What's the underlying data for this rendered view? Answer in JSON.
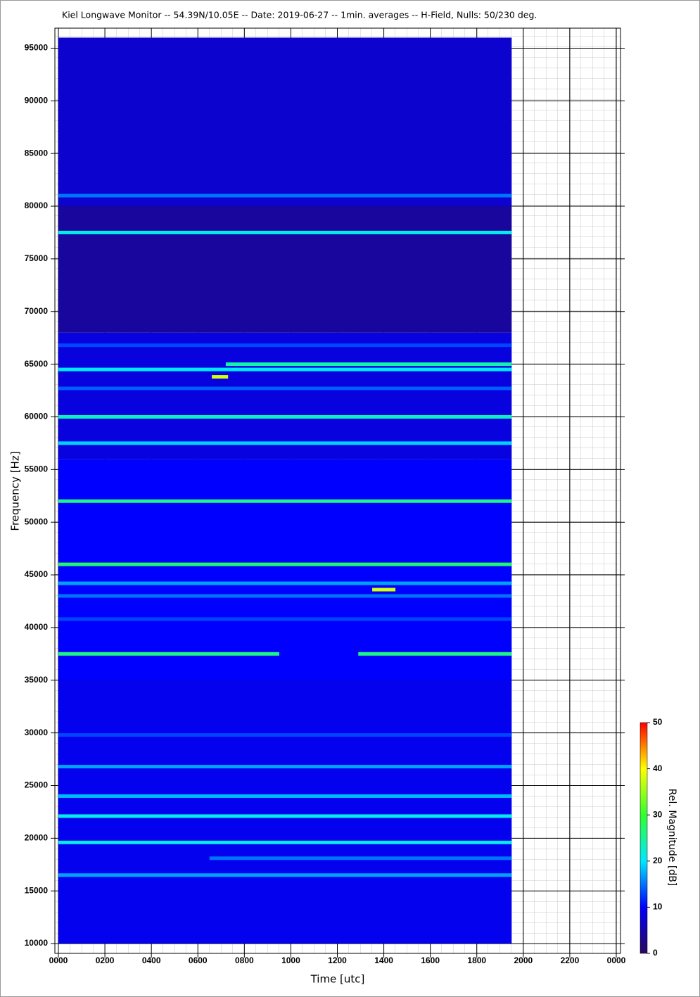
{
  "chart_data": {
    "type": "spectrogram",
    "title": "Kiel Longwave Monitor -- 54.39N/10.05E -- Date: 2019-06-27 -- 1min. averages -- H-Field, Nulls: 50/230 deg.",
    "xlabel": "Time [utc]",
    "ylabel": "Frequency [Hz]",
    "xlim": [
      0,
      24
    ],
    "ylim": [
      9070,
      96900
    ],
    "xticks": [
      {
        "value": 0,
        "label": "0000"
      },
      {
        "value": 2,
        "label": "0200"
      },
      {
        "value": 4,
        "label": "0400"
      },
      {
        "value": 6,
        "label": "0600"
      },
      {
        "value": 8,
        "label": "0800"
      },
      {
        "value": 10,
        "label": "1000"
      },
      {
        "value": 12,
        "label": "1200"
      },
      {
        "value": 14,
        "label": "1400"
      },
      {
        "value": 16,
        "label": "1600"
      },
      {
        "value": 18,
        "label": "1800"
      },
      {
        "value": 20,
        "label": "2000"
      },
      {
        "value": 22,
        "label": "2200"
      },
      {
        "value": 24,
        "label": "0000"
      }
    ],
    "yticks": [
      10000,
      15000,
      20000,
      25000,
      30000,
      35000,
      40000,
      45000,
      50000,
      55000,
      60000,
      65000,
      70000,
      75000,
      80000,
      85000,
      90000,
      95000
    ],
    "grid": true,
    "colorbar": {
      "label": "Rel. Magnitude [dB]",
      "lim": [
        0,
        50
      ],
      "ticks": [
        0,
        10,
        20,
        30,
        40,
        50
      ],
      "colormap": [
        "#2a0a5c",
        "#0000ff",
        "#00e8ff",
        "#30ff30",
        "#ffff00",
        "#ff0000"
      ]
    },
    "regions": [
      {
        "fmin": 10000,
        "fmax": 35000,
        "start": 0,
        "end": 19.5,
        "level": 9
      },
      {
        "fmin": 35000,
        "fmax": 56000,
        "start": 0,
        "end": 19.5,
        "level": 10
      },
      {
        "fmin": 56000,
        "fmax": 68000,
        "start": 0,
        "end": 19.5,
        "level": 8
      },
      {
        "fmin": 68000,
        "fmax": 80000,
        "start": 0,
        "end": 19.5,
        "level": 4
      },
      {
        "fmin": 80000,
        "fmax": 96000,
        "start": 0,
        "end": 19.5,
        "level": 7
      }
    ],
    "bands": [
      {
        "frequency": 81000,
        "start": 0,
        "end": 19.5,
        "level": 15
      },
      {
        "frequency": 77500,
        "start": 0,
        "end": 19.5,
        "level": 21
      },
      {
        "frequency": 66800,
        "start": 0,
        "end": 19.5,
        "level": 13
      },
      {
        "frequency": 64500,
        "start": 0,
        "end": 19.5,
        "level": 20
      },
      {
        "frequency": 65000,
        "start": 7.2,
        "end": 19.5,
        "level": 24
      },
      {
        "frequency": 63800,
        "start": 6.6,
        "end": 7.3,
        "level": 38
      },
      {
        "frequency": 62700,
        "start": 0,
        "end": 19.5,
        "level": 14
      },
      {
        "frequency": 60000,
        "start": 0,
        "end": 19.5,
        "level": 23
      },
      {
        "frequency": 57500,
        "start": 0,
        "end": 19.5,
        "level": 19
      },
      {
        "frequency": 52000,
        "start": 0,
        "end": 19.5,
        "level": 26
      },
      {
        "frequency": 46000,
        "start": 0,
        "end": 19.5,
        "level": 27
      },
      {
        "frequency": 44200,
        "start": 0,
        "end": 19.5,
        "level": 17
      },
      {
        "frequency": 43600,
        "start": 13.5,
        "end": 14.5,
        "level": 38
      },
      {
        "frequency": 43000,
        "start": 0,
        "end": 19.5,
        "level": 15
      },
      {
        "frequency": 40800,
        "start": 0,
        "end": 19.5,
        "level": 13
      },
      {
        "frequency": 37500,
        "start": 0,
        "end": 9.5,
        "level": 26
      },
      {
        "frequency": 37500,
        "start": 12.9,
        "end": 19.5,
        "level": 26
      },
      {
        "frequency": 29800,
        "start": 0,
        "end": 19.5,
        "level": 13
      },
      {
        "frequency": 26800,
        "start": 0,
        "end": 19.5,
        "level": 17
      },
      {
        "frequency": 24000,
        "start": 0,
        "end": 19.5,
        "level": 18
      },
      {
        "frequency": 22100,
        "start": 0,
        "end": 19.5,
        "level": 21
      },
      {
        "frequency": 19600,
        "start": 0,
        "end": 19.5,
        "level": 21
      },
      {
        "frequency": 18100,
        "start": 6.5,
        "end": 19.5,
        "level": 15
      },
      {
        "frequency": 16500,
        "start": 0,
        "end": 19.5,
        "level": 17
      }
    ]
  }
}
